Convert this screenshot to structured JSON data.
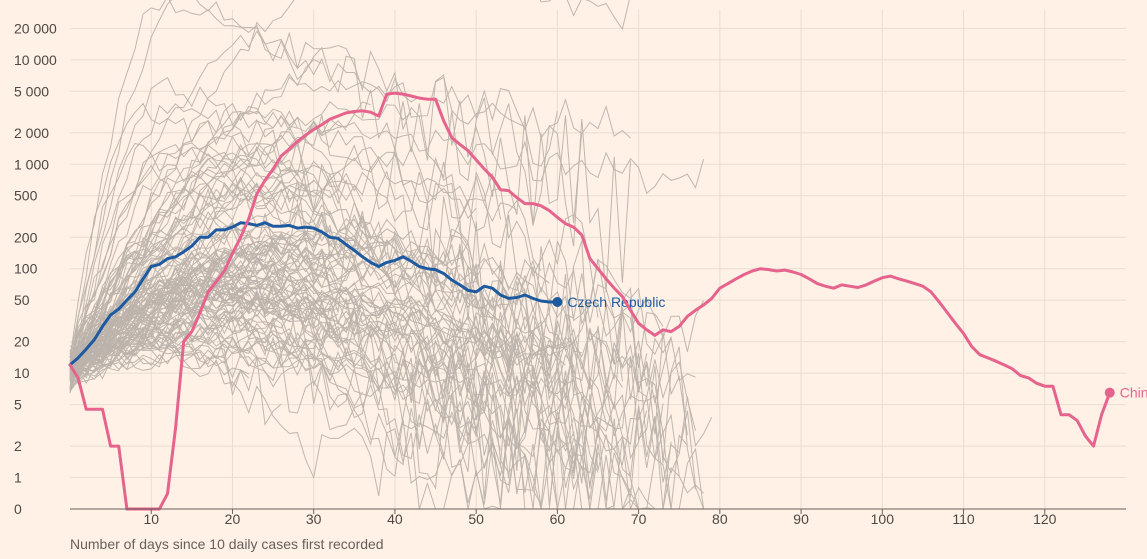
{
  "chart_data": {
    "type": "line",
    "xlabel": "Number of days since 10 daily cases first recorded",
    "ylabel": "",
    "x_range": [
      0,
      127
    ],
    "y_scale": "log",
    "y_range": [
      0,
      30000
    ],
    "x_ticks": [
      10,
      20,
      30,
      40,
      50,
      60,
      70,
      80,
      90,
      100,
      110,
      120
    ],
    "y_ticks": [
      0,
      1,
      2,
      5,
      10,
      20,
      50,
      100,
      200,
      500,
      1000,
      2000,
      5000,
      10000,
      20000
    ],
    "y_tick_labels": [
      "0",
      "1",
      "2",
      "5",
      "10",
      "20",
      "50",
      "100",
      "200",
      "500",
      "1 000",
      "2 000",
      "5 000",
      "10 000",
      "20 000"
    ],
    "grid": true,
    "highlight_series": [
      {
        "name": "Czech Republic",
        "color": "#1d5aa0",
        "points": [
          [
            0,
            12
          ],
          [
            1,
            14
          ],
          [
            2,
            17
          ],
          [
            3,
            21
          ],
          [
            4,
            28
          ],
          [
            5,
            36
          ],
          [
            6,
            41
          ],
          [
            7,
            50
          ],
          [
            8,
            60
          ],
          [
            9,
            80
          ],
          [
            10,
            105
          ],
          [
            11,
            110
          ],
          [
            12,
            125
          ],
          [
            13,
            130
          ],
          [
            14,
            145
          ],
          [
            15,
            165
          ],
          [
            16,
            200
          ],
          [
            17,
            200
          ],
          [
            18,
            235
          ],
          [
            19,
            235
          ],
          [
            20,
            250
          ],
          [
            21,
            275
          ],
          [
            22,
            270
          ],
          [
            23,
            260
          ],
          [
            24,
            275
          ],
          [
            25,
            255
          ],
          [
            26,
            255
          ],
          [
            27,
            260
          ],
          [
            28,
            245
          ],
          [
            29,
            250
          ],
          [
            30,
            245
          ],
          [
            31,
            225
          ],
          [
            32,
            200
          ],
          [
            33,
            195
          ],
          [
            34,
            170
          ],
          [
            35,
            150
          ],
          [
            36,
            130
          ],
          [
            37,
            115
          ],
          [
            38,
            105
          ],
          [
            39,
            115
          ],
          [
            40,
            120
          ],
          [
            41,
            130
          ],
          [
            42,
            118
          ],
          [
            43,
            105
          ],
          [
            44,
            100
          ],
          [
            45,
            98
          ],
          [
            46,
            90
          ],
          [
            47,
            78
          ],
          [
            48,
            70
          ],
          [
            49,
            62
          ],
          [
            50,
            60
          ],
          [
            51,
            68
          ],
          [
            52,
            65
          ],
          [
            53,
            56
          ],
          [
            54,
            52
          ],
          [
            55,
            53
          ],
          [
            56,
            56
          ],
          [
            57,
            52
          ],
          [
            58,
            49
          ],
          [
            59,
            48
          ],
          [
            60,
            48
          ]
        ]
      },
      {
        "name": "China",
        "color": "#e5638c",
        "points": [
          [
            0,
            12
          ],
          [
            1,
            9
          ],
          [
            2,
            4.5
          ],
          [
            3,
            4.5
          ],
          [
            4,
            4.5
          ],
          [
            5,
            2
          ],
          [
            6,
            2
          ],
          [
            7,
            0
          ],
          [
            8,
            0
          ],
          [
            9,
            0
          ],
          [
            10,
            0
          ],
          [
            11,
            0
          ],
          [
            12,
            0.7
          ],
          [
            13,
            3
          ],
          [
            14,
            20
          ],
          [
            15,
            25
          ],
          [
            16,
            38
          ],
          [
            17,
            60
          ],
          [
            18,
            75
          ],
          [
            19,
            95
          ],
          [
            20,
            140
          ],
          [
            21,
            200
          ],
          [
            22,
            300
          ],
          [
            23,
            520
          ],
          [
            24,
            700
          ],
          [
            25,
            900
          ],
          [
            26,
            1200
          ],
          [
            27,
            1400
          ],
          [
            28,
            1650
          ],
          [
            29,
            1900
          ],
          [
            30,
            2150
          ],
          [
            31,
            2400
          ],
          [
            32,
            2700
          ],
          [
            33,
            2900
          ],
          [
            34,
            3100
          ],
          [
            35,
            3200
          ],
          [
            36,
            3250
          ],
          [
            37,
            3150
          ],
          [
            38,
            2900
          ],
          [
            39,
            4700
          ],
          [
            40,
            4800
          ],
          [
            41,
            4700
          ],
          [
            42,
            4500
          ],
          [
            43,
            4300
          ],
          [
            44,
            4200
          ],
          [
            45,
            4200
          ],
          [
            46,
            2600
          ],
          [
            47,
            1800
          ],
          [
            48,
            1550
          ],
          [
            49,
            1350
          ],
          [
            50,
            1100
          ],
          [
            51,
            900
          ],
          [
            52,
            750
          ],
          [
            53,
            570
          ],
          [
            54,
            560
          ],
          [
            55,
            480
          ],
          [
            56,
            420
          ],
          [
            57,
            420
          ],
          [
            58,
            400
          ],
          [
            59,
            360
          ],
          [
            60,
            310
          ],
          [
            61,
            270
          ],
          [
            62,
            250
          ],
          [
            63,
            210
          ],
          [
            64,
            125
          ],
          [
            65,
            100
          ],
          [
            66,
            80
          ],
          [
            67,
            65
          ],
          [
            68,
            54
          ],
          [
            69,
            40
          ],
          [
            70,
            30
          ],
          [
            71,
            26
          ],
          [
            72,
            23
          ],
          [
            73,
            26
          ],
          [
            74,
            25
          ],
          [
            75,
            28
          ],
          [
            76,
            35
          ],
          [
            77,
            40
          ],
          [
            78,
            45
          ],
          [
            79,
            52
          ],
          [
            80,
            65
          ],
          [
            81,
            72
          ],
          [
            82,
            80
          ],
          [
            83,
            88
          ],
          [
            84,
            95
          ],
          [
            85,
            100
          ],
          [
            86,
            98
          ],
          [
            87,
            95
          ],
          [
            88,
            97
          ],
          [
            89,
            93
          ],
          [
            90,
            88
          ],
          [
            91,
            80
          ],
          [
            92,
            72
          ],
          [
            93,
            68
          ],
          [
            94,
            65
          ],
          [
            95,
            70
          ],
          [
            96,
            68
          ],
          [
            97,
            66
          ],
          [
            98,
            70
          ],
          [
            99,
            76
          ],
          [
            100,
            82
          ],
          [
            101,
            85
          ],
          [
            102,
            80
          ],
          [
            103,
            76
          ],
          [
            104,
            72
          ],
          [
            105,
            68
          ],
          [
            106,
            60
          ],
          [
            107,
            48
          ],
          [
            108,
            38
          ],
          [
            109,
            30
          ],
          [
            110,
            24
          ],
          [
            111,
            18
          ],
          [
            112,
            15
          ],
          [
            113,
            14
          ],
          [
            114,
            13
          ],
          [
            115,
            12
          ],
          [
            116,
            11
          ],
          [
            117,
            9.5
          ],
          [
            118,
            9
          ],
          [
            119,
            8
          ],
          [
            120,
            7.5
          ],
          [
            121,
            7.5
          ],
          [
            122,
            4
          ],
          [
            123,
            4
          ],
          [
            124,
            3.5
          ],
          [
            125,
            2.5
          ],
          [
            126,
            2
          ],
          [
            127,
            4
          ],
          [
            128,
            6.5
          ]
        ]
      }
    ]
  }
}
